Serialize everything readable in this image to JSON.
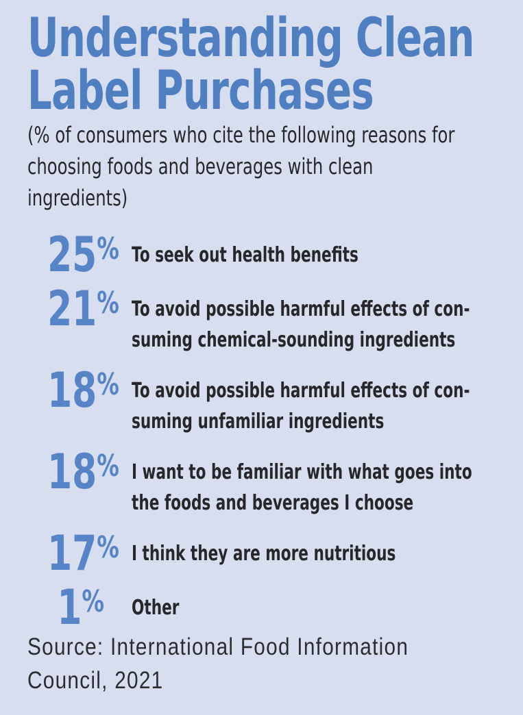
{
  "theme": {
    "bg": "#d7def0",
    "title": "#4f7ec1",
    "value": "#5684c6",
    "text": "#27272b",
    "source": "#2b2b30"
  },
  "header": {
    "title_lines": [
      "Understanding Clean",
      "Label Purchases"
    ],
    "subtitle_lines": [
      "(% of consumers who cite the following reasons for",
      "choosing foods and beverages with clean",
      "ingredients)"
    ]
  },
  "stats": [
    {
      "value": "25",
      "sign": "%",
      "reason_lines": [
        "To seek out health benefits"
      ]
    },
    {
      "value": "21",
      "sign": "%",
      "reason_lines": [
        "To avoid possible harmful effects of con-",
        "suming chemical-sounding ingredients"
      ]
    },
    {
      "value": "18",
      "sign": "%",
      "reason_lines": [
        "To avoid possible harmful effects of con-",
        "suming unfamiliar ingredients"
      ]
    },
    {
      "value": "18",
      "sign": "%",
      "reason_lines": [
        "I want to be familiar with what goes into",
        "the foods and beverages I choose"
      ]
    },
    {
      "value": "17",
      "sign": "%",
      "reason_lines": [
        "I think they are more nutritious"
      ]
    },
    {
      "value": "1",
      "sign": "%",
      "reason_lines": [
        "Other"
      ]
    }
  ],
  "source": {
    "lines": [
      "Source: International Food Information",
      "Council, 2021"
    ]
  },
  "chart_data": {
    "type": "bar",
    "title": "Understanding Clean Label Purchases",
    "subtitle": "(% of consumers who cite the following reasons for choosing foods and beverages with clean ingredients)",
    "categories": [
      "To seek out health benefits",
      "To avoid possible harmful effects of consuming chemical-sounding ingredients",
      "To avoid possible harmful effects of consuming unfamiliar ingredients",
      "I want to be familiar with what goes into the foods and beverages I choose",
      "I think they are more nutritious",
      "Other"
    ],
    "values": [
      25,
      21,
      18,
      18,
      17,
      1
    ],
    "unit": "%",
    "xlabel": "",
    "ylabel": "",
    "source": "Source: International Food Information Council, 2021"
  }
}
